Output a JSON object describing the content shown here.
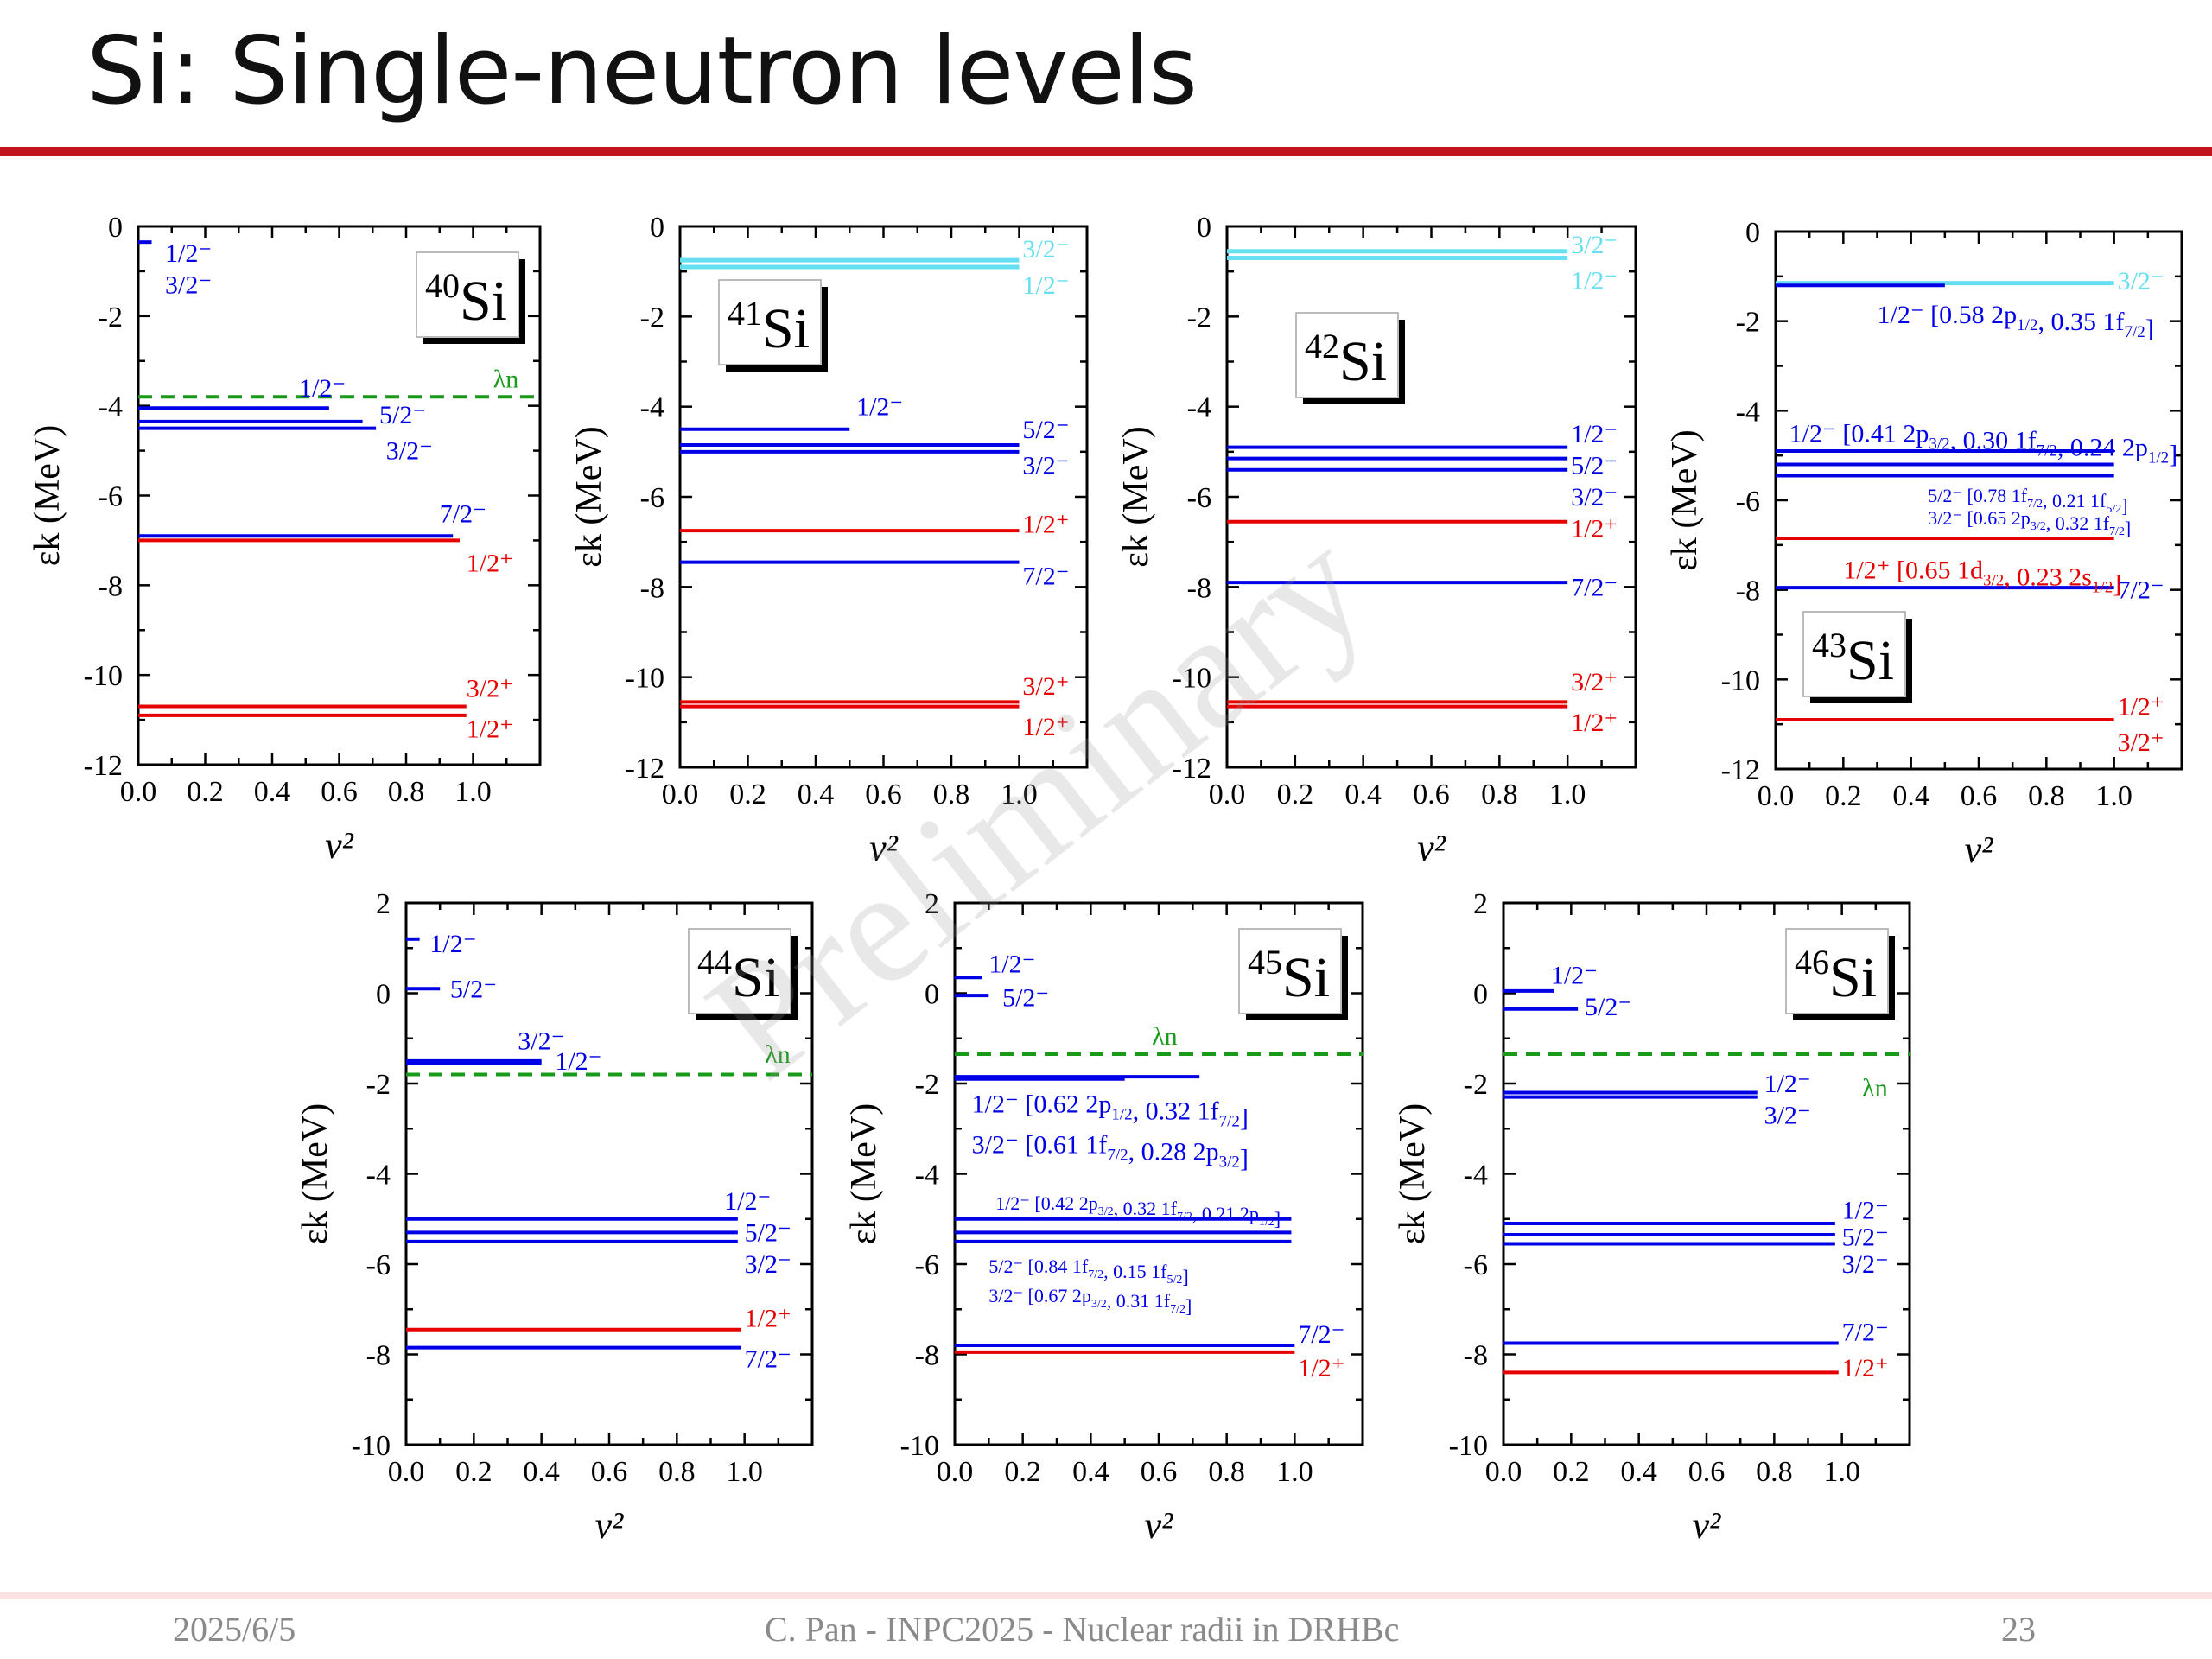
{
  "slide": {
    "title": "Si: Single-neutron levels",
    "watermark": "Preliminary",
    "footer": {
      "date": "2025/6/5",
      "center": "C. Pan - INPC2025 - Nuclear radii in DRHBc",
      "page": "23"
    }
  },
  "colors": {
    "title_rule": "#c0161c",
    "occupied_neg": "#0000e6",
    "positive_parity": "#e60000",
    "continuum": "#66e0f0",
    "fermi": "#1a9a1a",
    "footer_rule": "#fbe3e3"
  },
  "chart_data": [
    {
      "type": "scatter",
      "subtype": "level-scheme",
      "nucleus_mass": "40",
      "nucleus": "Si",
      "xlabel": "v²",
      "ylabel": "εk (MeV)",
      "xlim": [
        0,
        1.2
      ],
      "ylim": [
        -12,
        0
      ],
      "xticks": [
        "0.0",
        "0.2",
        "0.4",
        "0.6",
        "0.8",
        "1.0"
      ],
      "yticks": [
        "0",
        "-2",
        "-4",
        "-6",
        "-8",
        "-10",
        "-12"
      ],
      "fermi": {
        "label": "λn",
        "value": -3.8
      },
      "levels": [
        {
          "e": -0.35,
          "v2": 0.04,
          "color": "blue"
        },
        {
          "e": -4.05,
          "v2": 0.57,
          "color": "blue"
        },
        {
          "e": -4.35,
          "v2": 0.67,
          "color": "blue"
        },
        {
          "e": -4.5,
          "v2": 0.71,
          "color": "blue"
        },
        {
          "e": -6.9,
          "v2": 0.94,
          "color": "blue"
        },
        {
          "e": -7.0,
          "v2": 0.96,
          "color": "red"
        },
        {
          "e": -10.7,
          "v2": 0.98,
          "color": "red"
        },
        {
          "e": -10.9,
          "v2": 0.98,
          "color": "red"
        }
      ],
      "annotations": [
        {
          "text": "1/2⁻",
          "x": 0.08,
          "y": -0.6,
          "color": "blue"
        },
        {
          "text": "3/2⁻",
          "x": 0.08,
          "y": -1.3,
          "color": "blue"
        },
        {
          "text": "1/2⁻",
          "x": 0.48,
          "y": -3.6,
          "color": "blue"
        },
        {
          "text": "5/2⁻",
          "x": 0.72,
          "y": -4.2,
          "color": "blue"
        },
        {
          "text": "3/2⁻",
          "x": 0.74,
          "y": -5.0,
          "color": "blue"
        },
        {
          "text": "7/2⁻",
          "x": 0.9,
          "y": -6.4,
          "color": "blue"
        },
        {
          "text": "1/2⁺",
          "x": 0.98,
          "y": -7.5,
          "color": "red"
        },
        {
          "text": "3/2⁺",
          "x": 0.98,
          "y": -10.3,
          "color": "red"
        },
        {
          "text": "1/2⁺",
          "x": 0.98,
          "y": -11.2,
          "color": "red"
        },
        {
          "text": "λn",
          "x": 1.06,
          "y": -3.4,
          "color": "green"
        }
      ]
    },
    {
      "type": "scatter",
      "subtype": "level-scheme",
      "nucleus_mass": "41",
      "nucleus": "Si",
      "xlabel": "v²",
      "ylabel": "εk (MeV)",
      "xlim": [
        0,
        1.2
      ],
      "ylim": [
        -12,
        0
      ],
      "xticks": [
        "0.0",
        "0.2",
        "0.4",
        "0.6",
        "0.8",
        "1.0"
      ],
      "yticks": [
        "0",
        "-2",
        "-4",
        "-6",
        "-8",
        "-10",
        "-12"
      ],
      "levels": [
        {
          "e": -0.75,
          "v2": 1.0,
          "color": "cyan"
        },
        {
          "e": -0.9,
          "v2": 1.0,
          "color": "cyan"
        },
        {
          "e": -4.5,
          "v2": 0.5,
          "color": "blue"
        },
        {
          "e": -4.85,
          "v2": 1.0,
          "color": "blue"
        },
        {
          "e": -5.0,
          "v2": 1.0,
          "color": "blue"
        },
        {
          "e": -6.75,
          "v2": 1.0,
          "color": "red"
        },
        {
          "e": -7.45,
          "v2": 1.0,
          "color": "blue"
        },
        {
          "e": -10.55,
          "v2": 1.0,
          "color": "red"
        },
        {
          "e": -10.65,
          "v2": 1.0,
          "color": "red"
        }
      ],
      "annotations": [
        {
          "text": "3/2⁻",
          "x": 1.01,
          "y": -0.5,
          "color": "cyan"
        },
        {
          "text": "1/2⁻",
          "x": 1.01,
          "y": -1.3,
          "color": "cyan"
        },
        {
          "text": "1/2⁻",
          "x": 0.52,
          "y": -4.0,
          "color": "blue"
        },
        {
          "text": "5/2⁻",
          "x": 1.01,
          "y": -4.5,
          "color": "blue"
        },
        {
          "text": "3/2⁻",
          "x": 1.01,
          "y": -5.3,
          "color": "blue"
        },
        {
          "text": "1/2⁺",
          "x": 1.01,
          "y": -6.6,
          "color": "red"
        },
        {
          "text": "7/2⁻",
          "x": 1.01,
          "y": -7.75,
          "color": "blue"
        },
        {
          "text": "3/2⁺",
          "x": 1.01,
          "y": -10.2,
          "color": "red"
        },
        {
          "text": "1/2⁺",
          "x": 1.01,
          "y": -11.1,
          "color": "red"
        }
      ]
    },
    {
      "type": "scatter",
      "subtype": "level-scheme",
      "nucleus_mass": "42",
      "nucleus": "Si",
      "xlabel": "v²",
      "ylabel": "εk (MeV)",
      "xlim": [
        0,
        1.2
      ],
      "ylim": [
        -12,
        0
      ],
      "xticks": [
        "0.0",
        "0.2",
        "0.4",
        "0.6",
        "0.8",
        "1.0"
      ],
      "yticks": [
        "0",
        "-2",
        "-4",
        "-6",
        "-8",
        "-10",
        "-12"
      ],
      "levels": [
        {
          "e": -0.55,
          "v2": 1.0,
          "color": "cyan"
        },
        {
          "e": -0.7,
          "v2": 1.0,
          "color": "cyan"
        },
        {
          "e": -4.9,
          "v2": 1.0,
          "color": "blue"
        },
        {
          "e": -5.15,
          "v2": 1.0,
          "color": "blue"
        },
        {
          "e": -5.4,
          "v2": 1.0,
          "color": "blue"
        },
        {
          "e": -6.55,
          "v2": 1.0,
          "color": "red"
        },
        {
          "e": -7.9,
          "v2": 1.0,
          "color": "blue"
        },
        {
          "e": -10.55,
          "v2": 1.0,
          "color": "red"
        },
        {
          "e": -10.65,
          "v2": 1.0,
          "color": "red"
        }
      ],
      "annotations": [
        {
          "text": "3/2⁻",
          "x": 1.01,
          "y": -0.4,
          "color": "cyan"
        },
        {
          "text": "1/2⁻",
          "x": 1.01,
          "y": -1.2,
          "color": "cyan"
        },
        {
          "text": "1/2⁻",
          "x": 1.01,
          "y": -4.6,
          "color": "blue"
        },
        {
          "text": "5/2⁻",
          "x": 1.01,
          "y": -5.3,
          "color": "blue"
        },
        {
          "text": "3/2⁻",
          "x": 1.01,
          "y": -6.0,
          "color": "blue"
        },
        {
          "text": "1/2⁺",
          "x": 1.01,
          "y": -6.7,
          "color": "red"
        },
        {
          "text": "7/2⁻",
          "x": 1.01,
          "y": -8.0,
          "color": "blue"
        },
        {
          "text": "3/2⁺",
          "x": 1.01,
          "y": -10.1,
          "color": "red"
        },
        {
          "text": "1/2⁺",
          "x": 1.01,
          "y": -11.0,
          "color": "red"
        }
      ]
    },
    {
      "type": "scatter",
      "subtype": "level-scheme",
      "nucleus_mass": "43",
      "nucleus": "Si",
      "xlabel": "v²",
      "ylabel": "εk (MeV)",
      "xlim": [
        0,
        1.2
      ],
      "ylim": [
        -12,
        0
      ],
      "xticks": [
        "0.0",
        "0.2",
        "0.4",
        "0.6",
        "0.8",
        "1.0"
      ],
      "yticks": [
        "0",
        "-2",
        "-4",
        "-6",
        "-8",
        "-10",
        "-12"
      ],
      "levels": [
        {
          "e": -1.15,
          "v2": 1.0,
          "color": "cyan"
        },
        {
          "e": -1.2,
          "v2": 0.5,
          "color": "blue"
        },
        {
          "e": -4.9,
          "v2": 1.0,
          "color": "blue"
        },
        {
          "e": -5.2,
          "v2": 1.0,
          "color": "blue"
        },
        {
          "e": -5.45,
          "v2": 1.0,
          "color": "blue"
        },
        {
          "e": -6.85,
          "v2": 1.0,
          "color": "red"
        },
        {
          "e": -7.95,
          "v2": 1.0,
          "color": "blue"
        },
        {
          "e": -10.9,
          "v2": 1.0,
          "color": "red"
        }
      ],
      "annotations": [
        {
          "text": "3/2⁻",
          "x": 1.01,
          "y": -1.1,
          "color": "cyan"
        },
        {
          "text": "1/2⁻ [0.58 2p1/2, 0.35 1f7/2]",
          "x": 0.3,
          "y": -1.85,
          "color": "blue"
        },
        {
          "text": "1/2⁻ [0.41 2p3/2, 0.30 1f7/2, 0.24 2p1/2]",
          "x": 0.04,
          "y": -4.5,
          "color": "blue"
        },
        {
          "text": "5/2⁻ [0.78 1f7/2, 0.21 1f5/2]",
          "x": 0.45,
          "y": -5.85,
          "color": "blue",
          "size": "small"
        },
        {
          "text": "3/2⁻ [0.65 2p3/2, 0.32 1f7/2]",
          "x": 0.45,
          "y": -6.35,
          "color": "blue",
          "size": "small"
        },
        {
          "text": "1/2⁺ [0.65 1d3/2, 0.23 2s1/2]",
          "x": 0.2,
          "y": -7.55,
          "color": "red"
        },
        {
          "text": "7/2⁻",
          "x": 1.01,
          "y": -8.0,
          "color": "blue"
        },
        {
          "text": "1/2⁺",
          "x": 1.01,
          "y": -10.6,
          "color": "red"
        },
        {
          "text": "3/2⁺",
          "x": 1.01,
          "y": -11.4,
          "color": "red"
        }
      ]
    },
    {
      "type": "scatter",
      "subtype": "level-scheme",
      "nucleus_mass": "44",
      "nucleus": "Si",
      "xlabel": "v²",
      "ylabel": "εk (MeV)",
      "xlim": [
        0,
        1.2
      ],
      "ylim": [
        -10,
        2
      ],
      "xticks": [
        "0.0",
        "0.2",
        "0.4",
        "0.6",
        "0.8",
        "1.0"
      ],
      "yticks": [
        "2",
        "0",
        "-2",
        "-4",
        "-6",
        "-8",
        "-10"
      ],
      "fermi": {
        "label": "λn",
        "value": -1.8
      },
      "levels": [
        {
          "e": 1.2,
          "v2": 0.04,
          "color": "blue"
        },
        {
          "e": 0.1,
          "v2": 0.1,
          "color": "blue"
        },
        {
          "e": -1.5,
          "v2": 0.4,
          "color": "blue"
        },
        {
          "e": -1.55,
          "v2": 0.4,
          "color": "blue"
        },
        {
          "e": -5.0,
          "v2": 0.98,
          "color": "blue"
        },
        {
          "e": -5.3,
          "v2": 0.98,
          "color": "blue"
        },
        {
          "e": -5.5,
          "v2": 0.98,
          "color": "blue"
        },
        {
          "e": -7.45,
          "v2": 0.99,
          "color": "red"
        },
        {
          "e": -7.85,
          "v2": 0.99,
          "color": "blue"
        }
      ],
      "annotations": [
        {
          "text": "1/2⁻",
          "x": 0.07,
          "y": 1.1,
          "color": "blue"
        },
        {
          "text": "5/2⁻",
          "x": 0.13,
          "y": 0.1,
          "color": "blue"
        },
        {
          "text": "3/2⁻",
          "x": 0.33,
          "y": -1.05,
          "color": "blue"
        },
        {
          "text": "1/2⁻",
          "x": 0.44,
          "y": -1.5,
          "color": "blue"
        },
        {
          "text": "λn",
          "x": 1.06,
          "y": -1.35,
          "color": "green"
        },
        {
          "text": "1/2⁻",
          "x": 0.94,
          "y": -4.6,
          "color": "blue"
        },
        {
          "text": "5/2⁻",
          "x": 1.0,
          "y": -5.3,
          "color": "blue"
        },
        {
          "text": "3/2⁻",
          "x": 1.0,
          "y": -6.0,
          "color": "blue"
        },
        {
          "text": "1/2⁺",
          "x": 1.0,
          "y": -7.2,
          "color": "red"
        },
        {
          "text": "7/2⁻",
          "x": 1.0,
          "y": -8.1,
          "color": "blue"
        }
      ]
    },
    {
      "type": "scatter",
      "subtype": "level-scheme",
      "nucleus_mass": "45",
      "nucleus": "Si",
      "xlabel": "v²",
      "ylabel": "εk (MeV)",
      "xlim": [
        0,
        1.2
      ],
      "ylim": [
        -10,
        2
      ],
      "xticks": [
        "0.0",
        "0.2",
        "0.4",
        "0.6",
        "0.8",
        "1.0"
      ],
      "yticks": [
        "2",
        "0",
        "-2",
        "-4",
        "-6",
        "-8",
        "-10"
      ],
      "fermi": {
        "label": "λn",
        "value": -1.35
      },
      "levels": [
        {
          "e": 0.35,
          "v2": 0.08,
          "color": "blue"
        },
        {
          "e": -0.05,
          "v2": 0.1,
          "color": "blue"
        },
        {
          "e": -1.85,
          "v2": 0.72,
          "color": "blue"
        },
        {
          "e": -1.9,
          "v2": 0.5,
          "color": "blue"
        },
        {
          "e": -5.0,
          "v2": 0.99,
          "color": "blue"
        },
        {
          "e": -5.3,
          "v2": 0.99,
          "color": "blue"
        },
        {
          "e": -5.5,
          "v2": 0.99,
          "color": "blue"
        },
        {
          "e": -7.8,
          "v2": 1.0,
          "color": "blue"
        },
        {
          "e": -7.95,
          "v2": 1.0,
          "color": "red"
        }
      ],
      "annotations": [
        {
          "text": "1/2⁻",
          "x": 0.1,
          "y": 0.65,
          "color": "blue"
        },
        {
          "text": "5/2⁻",
          "x": 0.14,
          "y": -0.1,
          "color": "blue"
        },
        {
          "text": "λn",
          "x": 0.58,
          "y": -0.95,
          "color": "green"
        },
        {
          "text": "1/2⁻ [0.62 2p1/2, 0.32 1f7/2]",
          "x": 0.05,
          "y": -2.45,
          "color": "blue"
        },
        {
          "text": "3/2⁻ [0.61 1f7/2, 0.28 2p3/2]",
          "x": 0.05,
          "y": -3.35,
          "color": "blue"
        },
        {
          "text": "1/2⁻ [0.42 2p3/2, 0.32 1f7/2, 0.21 2p1/2]",
          "x": 0.12,
          "y": -4.6,
          "color": "blue",
          "size": "small"
        },
        {
          "text": "5/2⁻ [0.84 1f7/2, 0.15 1f5/2]",
          "x": 0.1,
          "y": -6.0,
          "color": "blue",
          "size": "small"
        },
        {
          "text": "3/2⁻ [0.67 2p3/2, 0.31 1f7/2]",
          "x": 0.1,
          "y": -6.65,
          "color": "blue",
          "size": "small"
        },
        {
          "text": "7/2⁻",
          "x": 1.01,
          "y": -7.55,
          "color": "blue"
        },
        {
          "text": "1/2⁺",
          "x": 1.01,
          "y": -8.3,
          "color": "red"
        }
      ]
    },
    {
      "type": "scatter",
      "subtype": "level-scheme",
      "nucleus_mass": "46",
      "nucleus": "Si",
      "xlabel": "v²",
      "ylabel": "εk (MeV)",
      "xlim": [
        0,
        1.2
      ],
      "ylim": [
        -10,
        2
      ],
      "xticks": [
        "0.0",
        "0.2",
        "0.4",
        "0.6",
        "0.8",
        "1.0"
      ],
      "yticks": [
        "2",
        "0",
        "-2",
        "-4",
        "-6",
        "-8",
        "-10"
      ],
      "fermi": {
        "label": "λn",
        "value": -1.35
      },
      "levels": [
        {
          "e": 0.05,
          "v2": 0.15,
          "color": "blue"
        },
        {
          "e": -0.35,
          "v2": 0.22,
          "color": "blue"
        },
        {
          "e": -2.2,
          "v2": 0.75,
          "color": "blue"
        },
        {
          "e": -2.3,
          "v2": 0.75,
          "color": "blue"
        },
        {
          "e": -5.1,
          "v2": 0.98,
          "color": "blue"
        },
        {
          "e": -5.35,
          "v2": 0.98,
          "color": "blue"
        },
        {
          "e": -5.55,
          "v2": 0.98,
          "color": "blue"
        },
        {
          "e": -7.75,
          "v2": 0.99,
          "color": "blue"
        },
        {
          "e": -8.4,
          "v2": 0.99,
          "color": "red"
        }
      ],
      "annotations": [
        {
          "text": "1/2⁻",
          "x": 0.14,
          "y": 0.4,
          "color": "blue"
        },
        {
          "text": "5/2⁻",
          "x": 0.24,
          "y": -0.3,
          "color": "blue"
        },
        {
          "text": "1/2⁻",
          "x": 0.77,
          "y": -2.0,
          "color": "blue"
        },
        {
          "text": "3/2⁻",
          "x": 0.77,
          "y": -2.7,
          "color": "blue"
        },
        {
          "text": "λn",
          "x": 1.06,
          "y": -2.1,
          "color": "green"
        },
        {
          "text": "1/2⁻",
          "x": 1.0,
          "y": -4.8,
          "color": "blue"
        },
        {
          "text": "5/2⁻",
          "x": 1.0,
          "y": -5.4,
          "color": "blue"
        },
        {
          "text": "3/2⁻",
          "x": 1.0,
          "y": -6.0,
          "color": "blue"
        },
        {
          "text": "7/2⁻",
          "x": 1.0,
          "y": -7.5,
          "color": "blue"
        },
        {
          "text": "1/2⁺",
          "x": 1.0,
          "y": -8.3,
          "color": "red"
        }
      ]
    }
  ]
}
